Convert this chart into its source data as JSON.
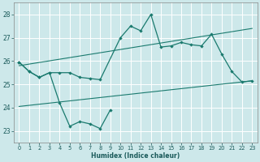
{
  "xlabel": "Humidex (Indice chaleur)",
  "background_color": "#cde8ea",
  "grid_color": "#ffffff",
  "line_color": "#1a7a6e",
  "xlim": [
    -0.5,
    23.5
  ],
  "ylim": [
    22.5,
    28.5
  ],
  "yticks": [
    23,
    24,
    25,
    26,
    27,
    28
  ],
  "xticks": [
    0,
    1,
    2,
    3,
    4,
    5,
    6,
    7,
    8,
    9,
    10,
    11,
    12,
    13,
    14,
    15,
    16,
    17,
    18,
    19,
    20,
    21,
    22,
    23
  ],
  "series1_x": [
    0,
    1,
    2,
    3,
    4,
    5,
    6,
    7,
    8,
    10,
    11,
    12,
    13,
    14,
    15,
    16,
    17,
    18,
    19,
    20,
    21,
    22,
    23
  ],
  "series1_y": [
    25.95,
    25.55,
    25.3,
    25.5,
    25.5,
    25.5,
    25.3,
    25.25,
    25.2,
    27.0,
    27.5,
    27.3,
    28.0,
    26.6,
    26.65,
    26.8,
    26.7,
    26.65,
    27.15,
    26.3,
    25.55,
    25.1,
    25.15
  ],
  "series2_x": [
    0,
    1,
    2,
    3,
    4,
    5,
    6,
    7,
    8,
    9
  ],
  "series2_y": [
    25.95,
    25.55,
    25.3,
    25.5,
    24.2,
    23.2,
    23.4,
    23.3,
    23.1,
    23.9
  ],
  "line1_x": [
    0,
    23
  ],
  "line1_y": [
    25.8,
    27.4
  ],
  "line2_x": [
    0,
    23
  ],
  "line2_y": [
    24.05,
    25.15
  ]
}
